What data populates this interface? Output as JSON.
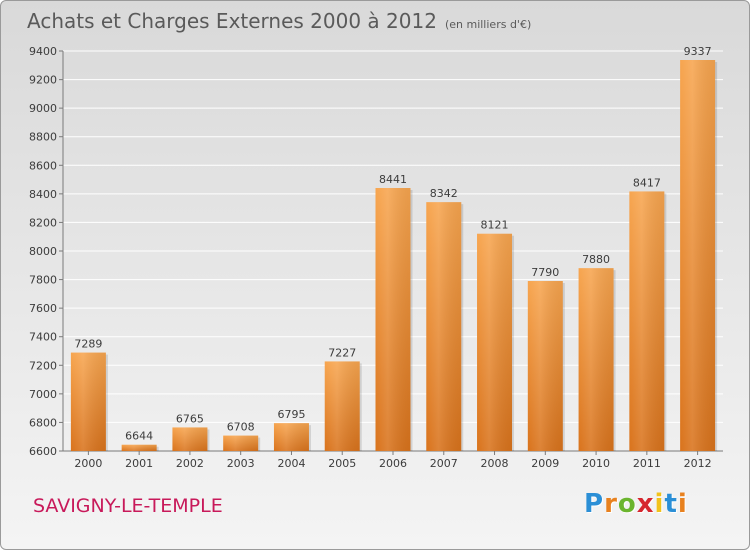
{
  "title": "Achats et Charges Externes 2000 à 2012",
  "subtitle": "(en milliers d'€)",
  "town": "SAVIGNY-LE-TEMPLE",
  "brand": {
    "letters": [
      "P",
      "r",
      "o",
      "x",
      "i",
      "t",
      "i"
    ],
    "colors": [
      "#2b8fd6",
      "#e8811e",
      "#6bb52e",
      "#d6262e",
      "#f2c21b",
      "#2b8fd6",
      "#e8811e"
    ]
  },
  "colors": {
    "bar_top": "#f7a54f",
    "bar_bottom": "#d9731c",
    "title": "#5a5a5a",
    "town": "#c8195a"
  },
  "chart_data": {
    "type": "bar",
    "categories": [
      "2000",
      "2001",
      "2002",
      "2003",
      "2004",
      "2005",
      "2006",
      "2007",
      "2008",
      "2009",
      "2010",
      "2011",
      "2012"
    ],
    "values": [
      7289,
      6644,
      6765,
      6708,
      6795,
      7227,
      8441,
      8342,
      8121,
      7790,
      7880,
      8417,
      9337
    ],
    "ylim": [
      6600,
      9400
    ],
    "yticks": [
      6600,
      6800,
      7000,
      7200,
      7400,
      7600,
      7800,
      8000,
      8200,
      8400,
      8600,
      8800,
      9000,
      9200,
      9400
    ],
    "grid": true,
    "data_labels": true
  }
}
